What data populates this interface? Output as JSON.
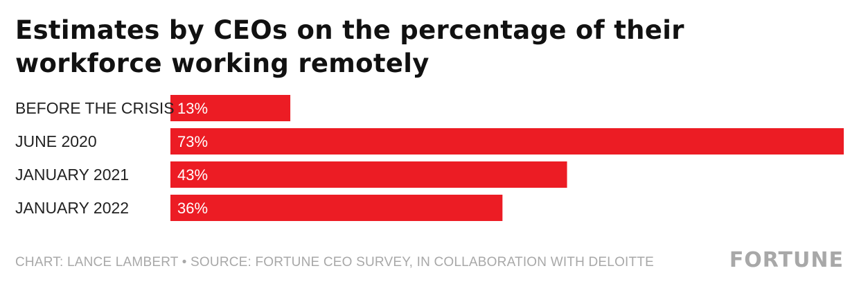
{
  "chart_data": {
    "type": "bar",
    "orientation": "horizontal",
    "title": "Estimates by CEOs on the percentage of their workforce working remotely",
    "title_lines": [
      "Estimates by CEOs on the percentage of their",
      "workforce working remotely"
    ],
    "categories": [
      "BEFORE THE CRISIS",
      "JUNE 2020",
      "JANUARY 2021",
      "JANUARY 2022"
    ],
    "values": [
      13,
      73,
      43,
      36
    ],
    "value_labels": [
      "13%",
      "73%",
      "43%",
      "36%"
    ],
    "unit": "%",
    "xlim": [
      0,
      73
    ],
    "grid": false,
    "legend": "none",
    "bar_color": "#ec1c24"
  },
  "footer": {
    "credit": "CHART: LANCE LAMBERT • SOURCE: FORTUNE CEO SURVEY, IN COLLABORATION WITH DELOITTE",
    "brand": "FORTUNE"
  },
  "colors": {
    "bar": "#ec1c24",
    "title": "#111111",
    "footer": "#a8a8a8"
  }
}
